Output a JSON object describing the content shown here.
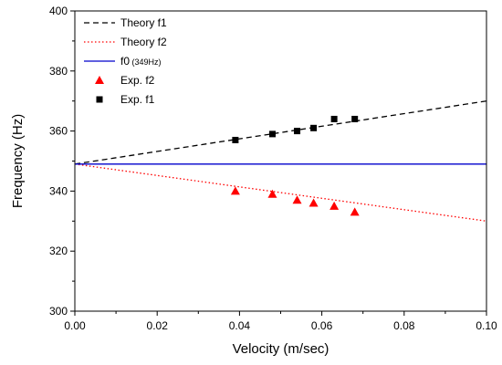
{
  "chart_data": {
    "type": "scatter",
    "xlabel": "Velocity (m/sec)",
    "ylabel": "Frequency (Hz)",
    "xlim": [
      0.0,
      0.1
    ],
    "ylim": [
      300,
      400
    ],
    "xticks": [
      "0.00",
      "0.02",
      "0.04",
      "0.06",
      "0.08",
      "0.10"
    ],
    "yticks": [
      "300",
      "320",
      "340",
      "360",
      "380",
      "400"
    ],
    "grid": false,
    "legend_position": "top-left",
    "series": [
      {
        "name": "Theory f1",
        "kind": "line",
        "style": "dashed",
        "color": "#000000",
        "x": [
          0.0,
          0.1
        ],
        "y": [
          349,
          370
        ]
      },
      {
        "name": "Theory f2",
        "kind": "line",
        "style": "dotted",
        "color": "#ff0000",
        "x": [
          0.0,
          0.1
        ],
        "y": [
          349,
          330
        ]
      },
      {
        "name": "f0",
        "name_suffix": "(349Hz)",
        "kind": "line",
        "style": "solid",
        "color": "#0000cc",
        "x": [
          0.0,
          0.1
        ],
        "y": [
          349,
          349
        ]
      },
      {
        "name": "Exp. f2",
        "kind": "scatter",
        "marker": "triangle",
        "color": "#ff0000",
        "x": [
          0.039,
          0.048,
          0.054,
          0.058,
          0.063,
          0.068
        ],
        "y": [
          340,
          339,
          337,
          336,
          335,
          333
        ]
      },
      {
        "name": "Exp. f1",
        "kind": "scatter",
        "marker": "square",
        "color": "#000000",
        "x": [
          0.039,
          0.048,
          0.054,
          0.058,
          0.063,
          0.068
        ],
        "y": [
          357,
          359,
          360,
          361,
          364,
          364
        ]
      }
    ]
  }
}
